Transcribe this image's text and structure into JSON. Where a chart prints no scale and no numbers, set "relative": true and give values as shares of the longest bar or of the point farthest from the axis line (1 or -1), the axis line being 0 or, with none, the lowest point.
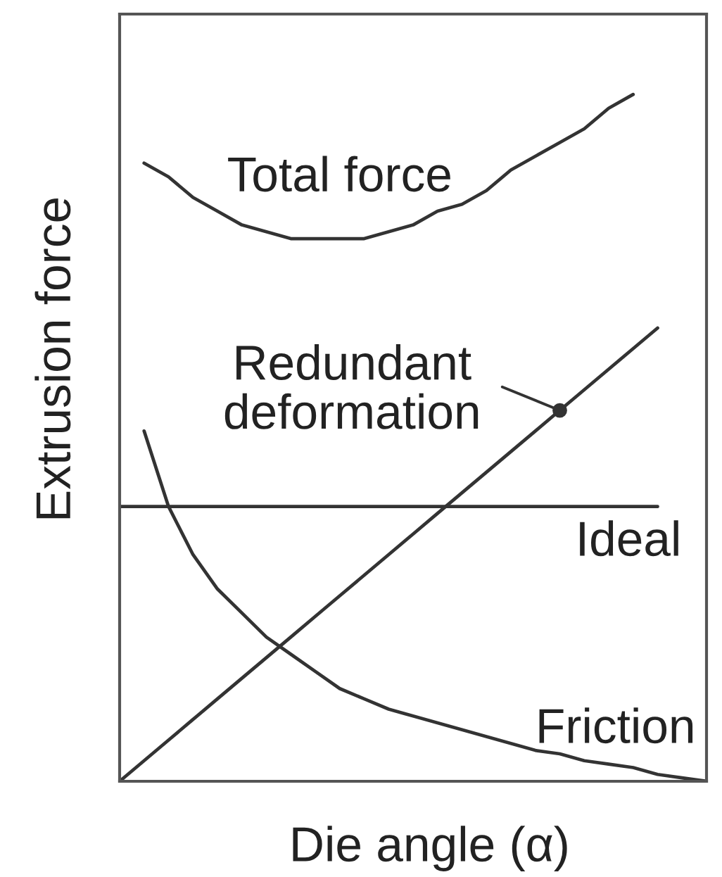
{
  "chart_data": {
    "type": "line",
    "xlabel": "Die angle (α)",
    "ylabel": "Extrusion force",
    "relative": true,
    "categories": [
      null,
      null,
      null,
      null,
      null,
      null,
      null,
      null,
      null,
      null,
      null,
      null,
      null,
      null,
      null,
      null,
      null,
      null,
      null,
      null,
      null,
      null,
      null,
      null,
      null
    ],
    "series": [
      {
        "name": "Total force",
        "color": "#333333",
        "values": [
          null,
          0.9,
          0.88,
          0.85,
          0.83,
          0.81,
          0.8,
          0.79,
          0.79,
          0.79,
          0.79,
          0.8,
          0.81,
          0.83,
          0.84,
          0.86,
          0.89,
          0.91,
          0.93,
          0.95,
          0.98,
          1.0,
          null,
          null,
          null
        ]
      },
      {
        "name": "Redundant\ndeformation",
        "color": "#333333",
        "values": [
          0,
          0.03,
          0.06,
          0.09,
          0.12,
          0.15,
          0.18,
          0.21,
          0.24,
          0.27,
          0.3,
          0.33,
          0.36,
          0.39,
          0.42,
          0.45,
          0.48,
          0.51,
          0.54,
          0.57,
          0.6,
          0.63,
          0.66,
          null,
          null
        ]
      },
      {
        "name": "Ideal",
        "color": "#333333",
        "values": [
          0.4,
          0.4,
          0.4,
          0.4,
          0.4,
          0.4,
          0.4,
          0.4,
          0.4,
          0.4,
          0.4,
          0.4,
          0.4,
          0.4,
          0.4,
          0.4,
          0.4,
          0.4,
          0.4,
          0.4,
          0.4,
          0.4,
          0.4,
          null,
          null
        ]
      },
      {
        "name": "Friction",
        "color": "#333333",
        "values": [
          null,
          0.51,
          0.4,
          0.33,
          0.28,
          0.245,
          0.21,
          0.185,
          0.16,
          0.135,
          0.12,
          0.105,
          0.095,
          0.085,
          0.075,
          0.065,
          0.055,
          0.045,
          0.04,
          0.03,
          0.025,
          0.02,
          0.01,
          0.005,
          0
        ]
      }
    ]
  }
}
